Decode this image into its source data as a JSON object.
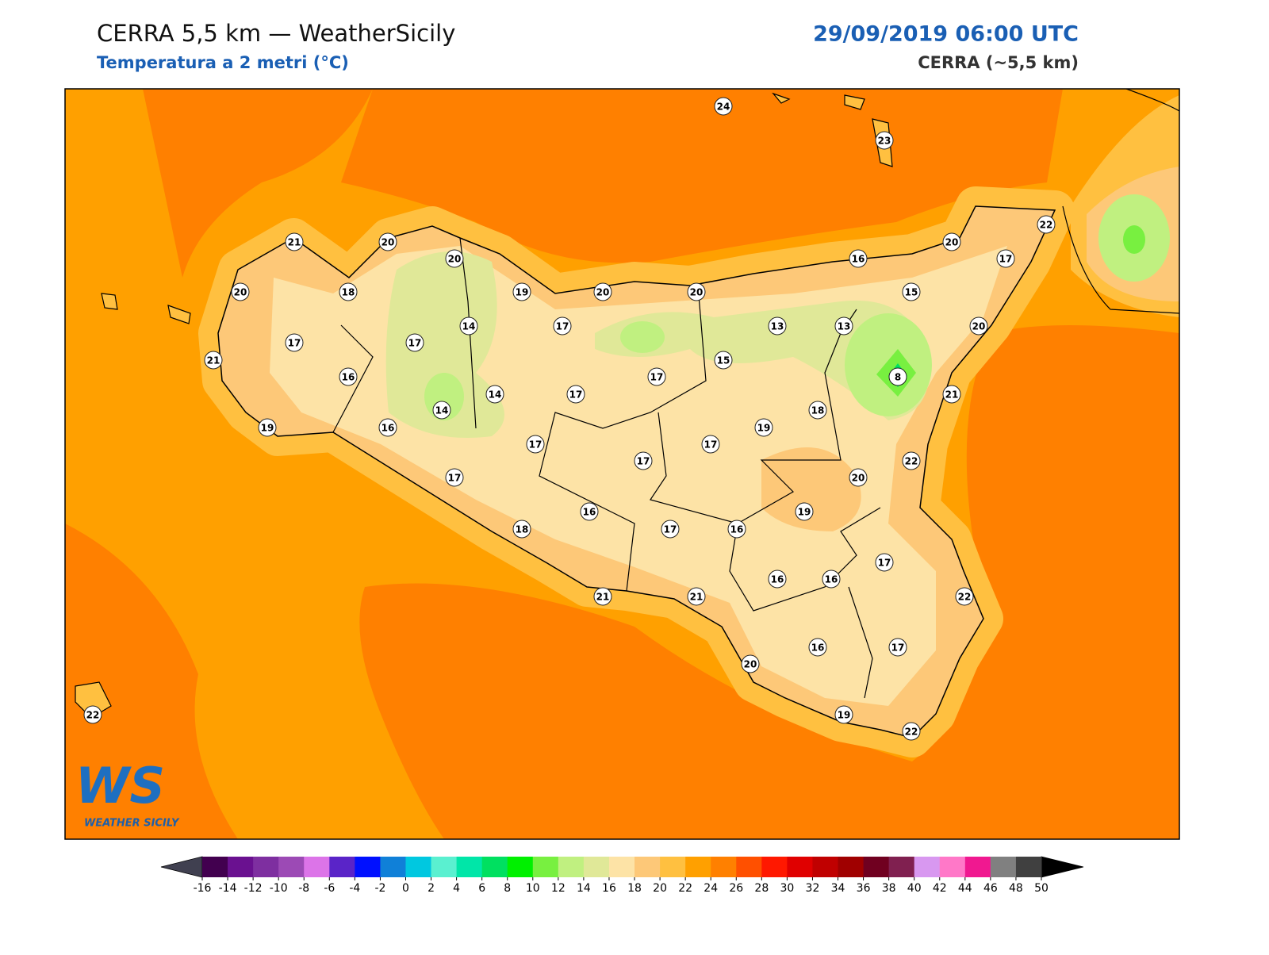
{
  "header": {
    "title": "CERRA 5,5 km — WeatherSicily",
    "subtitle": "Temperatura a 2 metri (°C)",
    "datetime": "29/09/2019 06:00 UTC",
    "model": "CERRA (~5,5 km)"
  },
  "stations": [
    24,
    23,
    21,
    20,
    20,
    22,
    20,
    16,
    17,
    20,
    18,
    19,
    20,
    20,
    15,
    14,
    17,
    13,
    13,
    20,
    17,
    17,
    21,
    15,
    16,
    17,
    8,
    14,
    17,
    21,
    14,
    18,
    19,
    16,
    19,
    17,
    17,
    17,
    22,
    17,
    20,
    16,
    19,
    18,
    17,
    16,
    17,
    16,
    16,
    21,
    21,
    22,
    16,
    17,
    20,
    19,
    22,
    22
  ],
  "colorbar": {
    "ticks": [
      -16,
      -14,
      -12,
      -10,
      -8,
      -6,
      -4,
      -2,
      0,
      2,
      4,
      6,
      8,
      10,
      12,
      14,
      16,
      18,
      20,
      22,
      24,
      26,
      28,
      30,
      32,
      34,
      36,
      38,
      40,
      42,
      44,
      46,
      48,
      50
    ],
    "colors": [
      "#42004f",
      "#6a1190",
      "#7e2fa0",
      "#9c4ab5",
      "#dc74e8",
      "#5a24c8",
      "#0010ff",
      "#1080d8",
      "#00c8e0",
      "#5af0d0",
      "#00e6a8",
      "#00e060",
      "#00f000",
      "#78f040",
      "#c0f080",
      "#e0e898",
      "#fde3a6",
      "#fdc878",
      "#ffc040",
      "#ffa000",
      "#ff8000",
      "#ff5000",
      "#ff1800",
      "#e00000",
      "#c00000",
      "#a00000",
      "#700020",
      "#802050",
      "#d898f0",
      "#ff78c8",
      "#f01890",
      "#808080",
      "#404040"
    ],
    "under_color": "#404050",
    "over_color": "#000000"
  },
  "logo": {
    "mark": "WS",
    "caption": "WEATHER SICILY"
  }
}
